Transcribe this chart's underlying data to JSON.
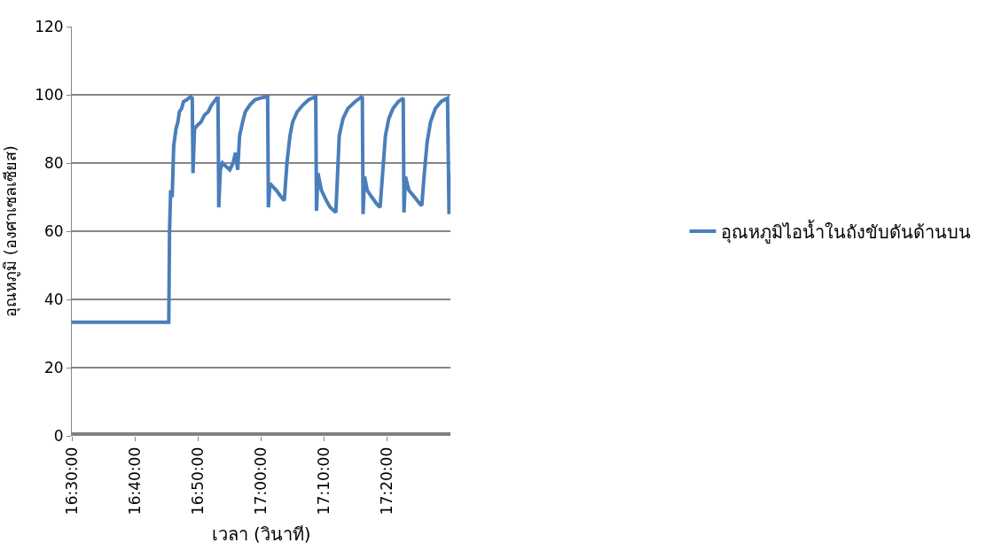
{
  "chart_data": {
    "type": "line",
    "xlabel": "เวลา (วินาที)",
    "ylabel": "อุณหภูมิ (องศาเซลเซียส)",
    "x": [
      16.5,
      16.756,
      16.758,
      16.761,
      16.765,
      16.769,
      16.775,
      16.78,
      16.784,
      16.79,
      16.795,
      16.803,
      16.814,
      16.818,
      16.82,
      16.824,
      16.831,
      16.841,
      16.85,
      16.86,
      16.869,
      16.883,
      16.886,
      16.888,
      16.892,
      16.898,
      16.907,
      16.917,
      16.926,
      16.932,
      16.938,
      16.943,
      16.951,
      16.958,
      16.97,
      16.983,
      16.996,
      17.017,
      17.019,
      17.023,
      17.04,
      17.053,
      17.061,
      17.068,
      17.076,
      17.083,
      17.095,
      17.11,
      17.125,
      17.144,
      17.146,
      17.15,
      17.159,
      17.172,
      17.182,
      17.197,
      17.201,
      17.206,
      17.216,
      17.229,
      17.248,
      17.267,
      17.269,
      17.273,
      17.28,
      17.292,
      17.305,
      17.314,
      17.32,
      17.328,
      17.337,
      17.348,
      17.362,
      17.375,
      17.377,
      17.381,
      17.39,
      17.405,
      17.419,
      17.424,
      17.43,
      17.438,
      17.447,
      17.46,
      17.475,
      17.492,
      17.496,
      17.5
    ],
    "series": [
      {
        "name": "อุณหภูมิไอน้ำในถังขับดันด้านบน",
        "color": "#4a7ebb",
        "values": [
          33.3,
          33.3,
          60,
          72,
          70,
          85,
          90,
          92,
          95,
          96,
          98,
          98.5,
          99.5,
          99,
          77,
          90,
          91,
          92,
          94,
          95,
          97,
          99,
          99,
          67,
          78,
          80,
          79,
          78,
          80,
          83,
          78,
          88,
          92,
          95,
          97,
          98.5,
          99,
          99.5,
          67,
          74,
          72,
          70,
          69,
          80,
          88,
          92,
          95,
          97,
          98.5,
          99.5,
          66,
          77,
          72,
          69,
          67,
          65.5,
          75,
          88,
          93,
          96,
          98,
          99.5,
          65,
          76,
          72,
          70,
          68,
          67,
          76,
          88,
          93,
          96,
          98,
          99,
          65.5,
          76,
          72,
          70,
          68,
          67.5,
          76,
          86,
          92,
          96,
          98,
          99,
          65,
          77
        ]
      }
    ],
    "xlim": [
      16.5,
      17.5
    ],
    "xticks": [
      {
        "value": 16.5,
        "label": "16:30:00"
      },
      {
        "value": 16.6667,
        "label": "16:40:00"
      },
      {
        "value": 16.8333,
        "label": "16:50:00"
      },
      {
        "value": 17.0,
        "label": "17:00:00"
      },
      {
        "value": 17.1667,
        "label": "17:10:00"
      },
      {
        "value": 17.3333,
        "label": "17:20:00"
      }
    ],
    "ylim": [
      0,
      120
    ],
    "yticks": [
      0,
      20,
      40,
      60,
      80,
      100,
      120
    ],
    "grid": "y",
    "legend": "right",
    "marker": "none",
    "line_style": "solid"
  }
}
